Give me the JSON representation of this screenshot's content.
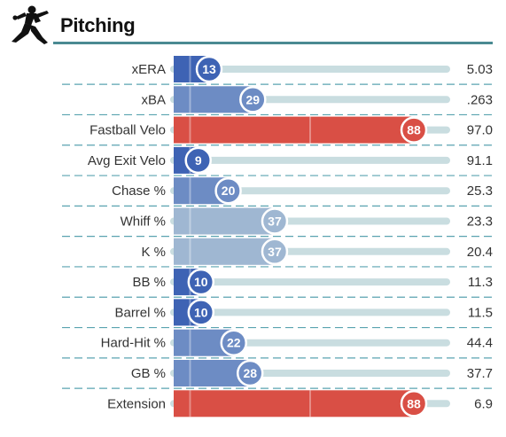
{
  "header": {
    "title": "Pitching",
    "icon": "pitcher-silhouette-icon"
  },
  "colors": {
    "accent_rule": "#4a8a92",
    "track": "#c9dde0",
    "divider": "#5aa3b0",
    "percentile_scale": [
      "#3e63b4",
      "#6d8cc4",
      "#9fb7d2",
      "#d94f45"
    ]
  },
  "chart_data": {
    "type": "bar",
    "title": "Pitching",
    "xlim": [
      0,
      100
    ],
    "categories": [
      "xERA",
      "xBA",
      "Fastball Velo",
      "Avg Exit Velo",
      "Chase %",
      "Whiff %",
      "K %",
      "BB %",
      "Barrel %",
      "Hard-Hit %",
      "GB %",
      "Extension"
    ],
    "percentiles": [
      13,
      29,
      88,
      9,
      20,
      37,
      37,
      10,
      10,
      22,
      28,
      88
    ],
    "stat_values": [
      "5.03",
      ".263",
      "97.0",
      "91.1",
      "25.3",
      "23.3",
      "20.4",
      "11.3",
      "11.5",
      "44.4",
      "37.7",
      "6.9"
    ]
  }
}
